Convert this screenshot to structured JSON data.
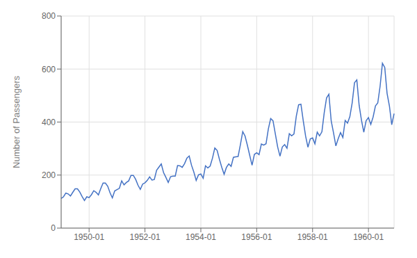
{
  "chart_data": {
    "type": "line",
    "ylabel": "Number of Passengers",
    "categories": [
      null,
      null,
      null,
      null,
      null,
      null,
      null,
      null,
      null,
      null,
      null,
      null,
      "1950-01",
      null,
      null,
      null,
      null,
      null,
      null,
      null,
      null,
      null,
      null,
      null,
      null,
      null,
      null,
      null,
      null,
      null,
      null,
      null,
      null,
      null,
      null,
      null,
      "1952-01",
      null,
      null,
      null,
      null,
      null,
      null,
      null,
      null,
      null,
      null,
      null,
      null,
      null,
      null,
      null,
      null,
      null,
      null,
      null,
      null,
      null,
      null,
      null,
      "1954-01",
      null,
      null,
      null,
      null,
      null,
      null,
      null,
      null,
      null,
      null,
      null,
      null,
      null,
      null,
      null,
      null,
      null,
      null,
      null,
      null,
      null,
      null,
      null,
      "1956-01",
      null,
      null,
      null,
      null,
      null,
      null,
      null,
      null,
      null,
      null,
      null,
      null,
      null,
      null,
      null,
      null,
      null,
      null,
      null,
      null,
      null,
      null,
      null,
      "1958-01",
      null,
      null,
      null,
      null,
      null,
      null,
      null,
      null,
      null,
      null,
      null,
      null,
      null,
      null,
      null,
      null,
      null,
      null,
      null,
      null,
      null,
      null,
      null,
      "1960-01",
      null,
      null,
      null,
      null,
      null,
      null,
      null,
      null,
      null,
      null,
      null
    ],
    "values": [
      112,
      118,
      132,
      129,
      121,
      135,
      148,
      148,
      136,
      119,
      104,
      118,
      115,
      126,
      141,
      135,
      125,
      149,
      170,
      170,
      158,
      133,
      114,
      140,
      145,
      150,
      178,
      163,
      172,
      178,
      199,
      199,
      184,
      162,
      146,
      166,
      171,
      180,
      193,
      181,
      183,
      218,
      230,
      242,
      209,
      191,
      172,
      194,
      196,
      196,
      236,
      235,
      229,
      243,
      264,
      272,
      237,
      211,
      180,
      201,
      204,
      188,
      235,
      227,
      234,
      264,
      302,
      293,
      259,
      229,
      203,
      229,
      242,
      233,
      267,
      269,
      270,
      315,
      364,
      347,
      312,
      274,
      237,
      278,
      284,
      277,
      317,
      313,
      318,
      374,
      413,
      405,
      355,
      306,
      271,
      306,
      315,
      301,
      356,
      348,
      355,
      422,
      465,
      467,
      404,
      347,
      305,
      336,
      340,
      318,
      362,
      348,
      363,
      435,
      491,
      505,
      404,
      359,
      310,
      337,
      360,
      342,
      406,
      396,
      420,
      472,
      548,
      559,
      463,
      407,
      362,
      405,
      417,
      391,
      419,
      461,
      472,
      535,
      622,
      606,
      508,
      461,
      390,
      432
    ],
    "color": "#4472C4",
    "ylim": [
      0,
      800
    ],
    "yticks": [
      0,
      200,
      400,
      600,
      800
    ],
    "grid": true
  }
}
